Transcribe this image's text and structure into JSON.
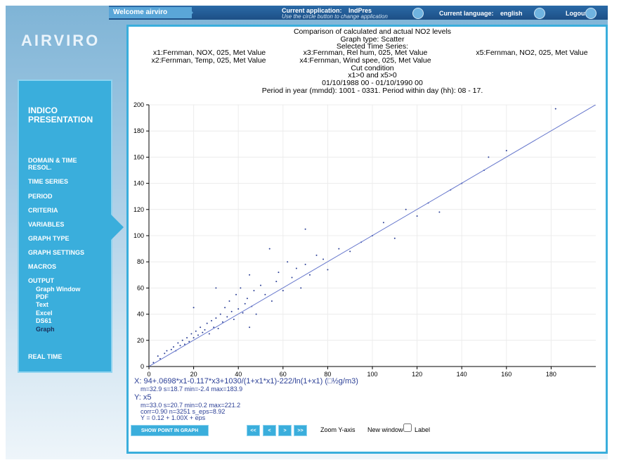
{
  "header": {
    "welcome": "Welcome airviro",
    "application_label": "Current application:",
    "application": "IndPres",
    "application_hint": "Use the circle button to change application",
    "language_label": "Current language:",
    "language": "english",
    "logout": "Logout"
  },
  "logo": "AIRVIRO",
  "sidebar": {
    "title": "INDICO PRESENTATION",
    "items": [
      "DOMAIN & TIME RESOL.",
      "TIME SERIES",
      "PERIOD",
      "CRITERIA",
      "VARIABLES",
      "GRAPH TYPE",
      "GRAPH SETTINGS",
      "MACROS"
    ],
    "output": {
      "label": "OUTPUT",
      "items": [
        "Graph Window",
        "PDF",
        "Text",
        "Excel",
        "DS61",
        "Graph"
      ]
    },
    "real_time": "REAL TIME"
  },
  "chart_data": {
    "type": "scatter",
    "title": "Comparison of calculated and actual NO2 levels",
    "graph_type": "Graph type: Scatter",
    "selected_label": "Selected Time Series:",
    "selected_series": [
      "x1:Fernman, NOX, 025, Met Value",
      "x2:Fernman, Temp, 025, Met Value",
      "x3:Fernman, Rel hum, 025, Met Value",
      "x4:Fernman, Wind spee, 025, Met Value",
      "x5:Fernman, NO2, 025, Met Value"
    ],
    "cut_label": "Cut condition",
    "cut": "x1>0 and x5>0",
    "date_range": "01/10/1988 00 - 01/10/1990 00",
    "period": "Period in year (mmdd): 1001 - 0331. Period within day (hh): 08 - 17.",
    "xlim": [
      0,
      200
    ],
    "xticks": [
      0,
      20,
      40,
      60,
      80,
      100,
      120,
      140,
      160,
      180
    ],
    "ylim": [
      0,
      200
    ],
    "yticks": [
      0,
      20,
      40,
      60,
      80,
      100,
      120,
      140,
      160,
      180,
      200
    ],
    "grid": true,
    "series": [
      {
        "color": "#2b3f96",
        "x": [
          2,
          4,
          5,
          7,
          8,
          10,
          11,
          12,
          13,
          14,
          15,
          16,
          17,
          18,
          19,
          20,
          21,
          22,
          23,
          24,
          25,
          26,
          27,
          28,
          29,
          30,
          31,
          32,
          33,
          34,
          35,
          36,
          37,
          38,
          39,
          40,
          41,
          42,
          43,
          44,
          45,
          46,
          47,
          48,
          50,
          52,
          54,
          55,
          57,
          58,
          60,
          62,
          64,
          66,
          68,
          70,
          72,
          75,
          78,
          80,
          85,
          90,
          95,
          100,
          105,
          110,
          115,
          120,
          125,
          130,
          135,
          140,
          150,
          152,
          160,
          182,
          70,
          45,
          30,
          20
        ],
        "y": [
          3,
          8,
          6,
          10,
          12,
          13,
          15,
          12,
          18,
          16,
          20,
          17,
          22,
          19,
          25,
          22,
          27,
          24,
          30,
          26,
          28,
          33,
          25,
          35,
          30,
          37,
          29,
          40,
          34,
          45,
          38,
          50,
          42,
          36,
          55,
          44,
          60,
          41,
          48,
          52,
          70,
          46,
          58,
          40,
          62,
          55,
          90,
          50,
          65,
          72,
          58,
          80,
          68,
          75,
          60,
          78,
          70,
          85,
          82,
          74,
          90,
          88,
          95,
          100,
          110,
          98,
          120,
          115,
          125,
          118,
          135,
          140,
          150,
          160,
          165,
          197,
          105,
          30,
          60,
          45
        ]
      }
    ],
    "fit": {
      "color": "#6677cc",
      "x": [
        0,
        200
      ],
      "y": [
        0.12,
        200.12
      ]
    },
    "x_label": "X: 94+.0698*x1-0.117*x3+1030/(1+x1*x1)-222/ln(1+x1) (□½g/m3)",
    "x_stats": "m=32.9 s=18.7 min=-2.4 max=183.9",
    "y_label": "Y: x5",
    "y_stats": "m=33.0 s=20.7 min=0.2 max=221.2",
    "corr_stats": "corr=0.90 n=3251 s_eps=8.92",
    "regression": "Y = 0.12 + 1.00X + eps"
  },
  "controls": {
    "show_point": "SHOW POINT IN GRAPH",
    "nav": [
      "<<",
      "<",
      ">",
      ">>"
    ],
    "zoom": "Zoom Y-axis",
    "new_window": "New window",
    "label": "Label"
  }
}
